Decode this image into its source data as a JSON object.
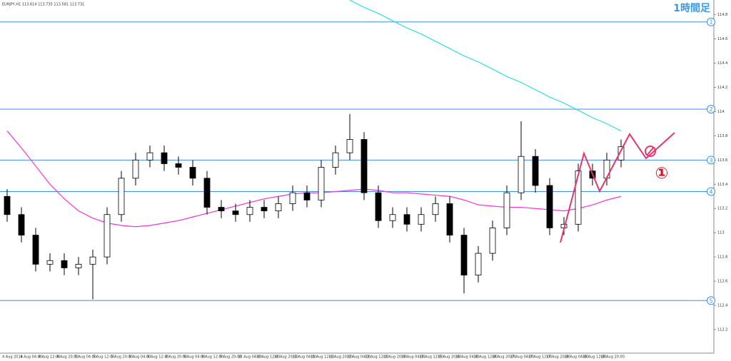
{
  "chart_data": {
    "type": "candlestick",
    "header": "EURJPY,H1 113.614 113.735 113.581 113.731",
    "title": "1時間足",
    "annotation": "①",
    "ylim": [
      112.006,
      114.921
    ],
    "yticks": [
      114.8,
      114.6,
      114.4,
      114.2,
      114.0,
      113.8,
      113.6,
      113.4,
      113.2,
      113.0,
      112.8,
      112.6,
      112.4,
      112.2
    ],
    "open": [
      113.3,
      113.15,
      112.98,
      112.74,
      112.77,
      112.71,
      112.74,
      112.8,
      113.15,
      113.45,
      113.6,
      113.66,
      113.57,
      113.54,
      113.45,
      113.21,
      113.18,
      113.15,
      113.21,
      113.18,
      113.24,
      113.33,
      113.27,
      113.54,
      113.66,
      113.77,
      113.33,
      113.1,
      113.15,
      113.07,
      113.15,
      113.24,
      112.98,
      112.65,
      112.83,
      113.04,
      113.33,
      113.63,
      113.39,
      113.04,
      113.07,
      113.51,
      113.45,
      113.6
    ],
    "high": [
      113.36,
      113.21,
      113.04,
      112.83,
      112.83,
      112.8,
      112.86,
      113.21,
      113.51,
      113.66,
      113.72,
      113.72,
      113.63,
      113.6,
      113.51,
      113.27,
      113.24,
      113.27,
      113.27,
      113.3,
      113.39,
      113.39,
      113.6,
      113.72,
      113.98,
      113.83,
      113.39,
      113.21,
      113.21,
      113.21,
      113.3,
      113.3,
      113.04,
      112.89,
      113.1,
      113.39,
      113.92,
      113.69,
      113.45,
      113.13,
      113.57,
      113.57,
      113.66,
      113.77
    ],
    "low": [
      113.09,
      112.92,
      112.68,
      112.68,
      112.65,
      112.65,
      112.45,
      112.74,
      113.09,
      113.39,
      113.54,
      113.51,
      113.48,
      113.39,
      113.15,
      113.12,
      113.09,
      113.09,
      113.12,
      113.12,
      113.18,
      113.21,
      113.21,
      113.48,
      113.6,
      113.27,
      113.04,
      113.04,
      113.01,
      113.01,
      113.09,
      112.92,
      112.5,
      112.59,
      112.77,
      112.98,
      113.27,
      113.33,
      112.98,
      112.98,
      113.01,
      113.39,
      113.39,
      113.54
    ],
    "close": [
      113.15,
      112.98,
      112.74,
      112.77,
      112.71,
      112.74,
      112.8,
      113.15,
      113.45,
      113.6,
      113.66,
      113.57,
      113.54,
      113.45,
      113.21,
      113.18,
      113.15,
      113.21,
      113.18,
      113.24,
      113.33,
      113.27,
      113.54,
      113.66,
      113.77,
      113.33,
      113.1,
      113.15,
      113.07,
      113.15,
      113.24,
      112.98,
      112.65,
      112.83,
      113.04,
      113.33,
      113.63,
      113.39,
      113.04,
      113.07,
      113.51,
      113.45,
      113.6,
      113.71
    ],
    "series": [
      {
        "color": "#ff33cc",
        "values": [
          113.84,
          113.7,
          113.55,
          113.4,
          113.28,
          113.18,
          113.12,
          113.08,
          113.06,
          113.05,
          113.06,
          113.08,
          113.1,
          113.13,
          113.16,
          113.19,
          113.22,
          113.25,
          113.28,
          113.3,
          113.32,
          113.33,
          113.33,
          113.34,
          113.35,
          113.36,
          113.35,
          113.33,
          113.33,
          113.32,
          113.31,
          113.3,
          113.27,
          113.23,
          113.22,
          113.21,
          113.21,
          113.2,
          113.19,
          113.18,
          113.2,
          113.23,
          113.27,
          113.3
        ]
      },
      {
        "color": "#33dddd",
        "values": [
          null,
          null,
          null,
          null,
          null,
          null,
          null,
          null,
          null,
          null,
          null,
          null,
          null,
          null,
          null,
          null,
          null,
          null,
          null,
          null,
          null,
          null,
          null,
          null,
          114.92,
          114.86,
          114.81,
          114.75,
          114.69,
          114.64,
          114.58,
          114.52,
          114.46,
          114.41,
          114.35,
          114.29,
          114.24,
          114.18,
          114.12,
          114.07,
          114.01,
          113.95,
          113.9,
          113.84
        ]
      }
    ],
    "levels": [
      {
        "value": 114.74,
        "label": "1"
      },
      {
        "value": 114.02,
        "label": "2"
      },
      {
        "value": 113.6,
        "label": "3"
      },
      {
        "value": 113.34,
        "label": "4"
      },
      {
        "value": 112.44,
        "label": "5"
      }
    ],
    "level_color": "#3b8fe8",
    "xticks": [
      "4 Aug 2016",
      "4 Aug 04:00",
      "4 Aug 12:00",
      "4 Aug 20:00",
      "5 Aug 04:00",
      "5 Aug 12:00",
      "5 Aug 20:00",
      "8 Aug 04:00",
      "8 Aug 12:00",
      "8 Aug 20:00",
      "9 Aug 04:00",
      "9 Aug 12:00",
      "9 Aug 20:00",
      "10 Aug 04:00",
      "10 Aug 12:00",
      "10 Aug 20:00",
      "11 Aug 04:00",
      "11 Aug 12:00",
      "11 Aug 20:00",
      "12 Aug 04:00",
      "12 Aug 12:00",
      "12 Aug 20:00",
      "15 Aug 04:00",
      "15 Aug 12:00",
      "15 Aug 20:00",
      "16 Aug 04:00",
      "16 Aug 12:00",
      "16 Aug 20:00",
      "17 Aug 04:00",
      "17 Aug 12:00",
      "17 Aug 20:00",
      "18 Aug 04:00",
      "18 Aug 12:00",
      "18 Aug 20:00"
    ]
  }
}
